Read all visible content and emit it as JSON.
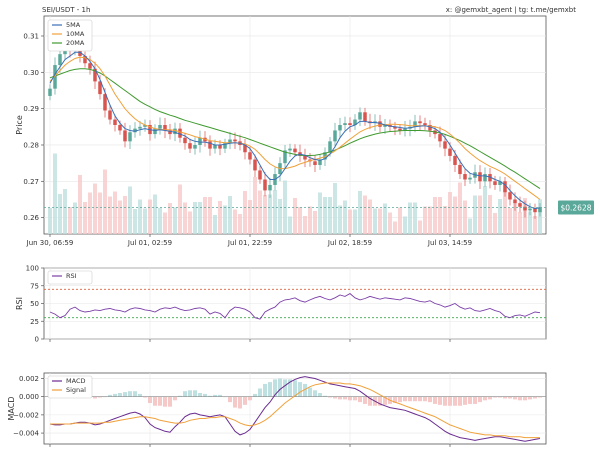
{
  "header": {
    "pair_title": "SEI/USDT - 1h",
    "credits": "x: @gemxbt_agent | tg: t.me/gemxbt"
  },
  "colors": {
    "bg": "#ffffff",
    "grid": "#e6e6e6",
    "up": "#5aa89a",
    "down": "#d9534f",
    "vol_up": "#bfe0e0",
    "vol_down": "#f6c9c9",
    "ma5": "#3b6fb6",
    "ma10": "#f0a13a",
    "ma20": "#3f9a2f",
    "rsi": "#7b3fa8",
    "rsi_70": "#e0603a",
    "rsi_30": "#3fa84a",
    "macd": "#6a2c91",
    "signal": "#f0a13a",
    "price_tag": "#5aa89a",
    "last_price_line": "#5aa89a"
  },
  "chart_data": [
    {
      "type": "candlestick",
      "id": "price",
      "ylabel": "Price",
      "ylim": [
        0.2555,
        0.3155
      ],
      "yticks": [
        0.26,
        0.27,
        0.28,
        0.29,
        0.3,
        0.31
      ],
      "ytick_labels": [
        "0.26",
        "0.27",
        "0.28",
        "0.29",
        "0.30",
        "0.31"
      ],
      "xtick_labels": [
        "Jun 30, 06:59",
        "Jul 01, 02:59",
        "Jul 01, 22:59",
        "Jul 02, 18:59",
        "Jul 03, 14:59"
      ],
      "xtick_index": [
        0,
        20,
        40,
        60,
        80
      ],
      "legend": [
        "5MA",
        "10MA",
        "20MA"
      ],
      "legend_position": "top-left",
      "last_price": 0.2628,
      "last_price_label": "$0.2628",
      "grid": true,
      "candle_count": 99,
      "close": [
        0.2955,
        0.302,
        0.305,
        0.307,
        0.306,
        0.3085,
        0.3045,
        0.3025,
        0.301,
        0.2975,
        0.294,
        0.2895,
        0.287,
        0.2855,
        0.284,
        0.281,
        0.2835,
        0.2845,
        0.285,
        0.2855,
        0.283,
        0.2845,
        0.2855,
        0.284,
        0.283,
        0.2845,
        0.282,
        0.2805,
        0.279,
        0.28,
        0.282,
        0.281,
        0.279,
        0.28,
        0.279,
        0.2805,
        0.2815,
        0.281,
        0.28,
        0.278,
        0.276,
        0.273,
        0.2705,
        0.2675,
        0.269,
        0.272,
        0.275,
        0.2785,
        0.279,
        0.278,
        0.277,
        0.276,
        0.2755,
        0.2745,
        0.276,
        0.278,
        0.281,
        0.284,
        0.2855,
        0.286,
        0.2855,
        0.287,
        0.289,
        0.2865,
        0.286,
        0.2865,
        0.285,
        0.2855,
        0.285,
        0.2845,
        0.284,
        0.2845,
        0.285,
        0.2865,
        0.286,
        0.2855,
        0.284,
        0.283,
        0.281,
        0.279,
        0.277,
        0.2745,
        0.272,
        0.2705,
        0.271,
        0.2725,
        0.27,
        0.272,
        0.27,
        0.269,
        0.27,
        0.267,
        0.265,
        0.264,
        0.263,
        0.262,
        0.2625,
        0.2615,
        0.2628
      ],
      "ma5": [
        0.297,
        0.2995,
        0.3015,
        0.3035,
        0.3045,
        0.3055,
        0.3055,
        0.3045,
        0.303,
        0.301,
        0.298,
        0.2945,
        0.291,
        0.288,
        0.286,
        0.2845,
        0.284,
        0.2838,
        0.2842,
        0.2845,
        0.2842,
        0.284,
        0.2842,
        0.284,
        0.2838,
        0.2835,
        0.283,
        0.2825,
        0.2815,
        0.281,
        0.2808,
        0.2808,
        0.2805,
        0.28,
        0.28,
        0.2802,
        0.2805,
        0.2806,
        0.2805,
        0.28,
        0.279,
        0.277,
        0.2745,
        0.272,
        0.2705,
        0.2705,
        0.2715,
        0.2735,
        0.2755,
        0.277,
        0.2775,
        0.2772,
        0.2765,
        0.276,
        0.2758,
        0.2762,
        0.2775,
        0.2795,
        0.282,
        0.2838,
        0.285,
        0.2855,
        0.2865,
        0.2865,
        0.2862,
        0.2862,
        0.286,
        0.2855,
        0.2852,
        0.285,
        0.2848,
        0.2846,
        0.2847,
        0.285,
        0.2852,
        0.2853,
        0.285,
        0.2845,
        0.2835,
        0.282,
        0.28,
        0.2778,
        0.2755,
        0.2735,
        0.2722,
        0.2718,
        0.2715,
        0.2715,
        0.2712,
        0.2705,
        0.27,
        0.269,
        0.2675,
        0.266,
        0.2648,
        0.2638,
        0.263,
        0.2625,
        0.2627
      ],
      "ma10": [
        0.2975,
        0.299,
        0.3005,
        0.302,
        0.303,
        0.3038,
        0.3042,
        0.304,
        0.3035,
        0.3025,
        0.301,
        0.299,
        0.2965,
        0.294,
        0.292,
        0.29,
        0.2885,
        0.2872,
        0.2862,
        0.2855,
        0.285,
        0.2845,
        0.2843,
        0.2842,
        0.2842,
        0.284,
        0.2836,
        0.2832,
        0.2828,
        0.2823,
        0.282,
        0.2816,
        0.2812,
        0.281,
        0.2808,
        0.2806,
        0.2806,
        0.2806,
        0.2805,
        0.2803,
        0.2797,
        0.2788,
        0.2775,
        0.276,
        0.2748,
        0.274,
        0.2735,
        0.2735,
        0.2738,
        0.2742,
        0.2748,
        0.2752,
        0.2757,
        0.276,
        0.2764,
        0.2768,
        0.2775,
        0.2784,
        0.2794,
        0.2805,
        0.2816,
        0.2826,
        0.2836,
        0.2843,
        0.2848,
        0.2852,
        0.2855,
        0.2856,
        0.2857,
        0.2857,
        0.2856,
        0.2855,
        0.2853,
        0.2853,
        0.2853,
        0.2853,
        0.2852,
        0.285,
        0.2846,
        0.284,
        0.283,
        0.2818,
        0.2805,
        0.279,
        0.2778,
        0.2767,
        0.2757,
        0.2749,
        0.2741,
        0.2735,
        0.2728,
        0.272,
        0.271,
        0.27,
        0.269,
        0.268,
        0.267,
        0.266,
        0.265
      ],
      "ma20": [
        0.2985,
        0.299,
        0.2995,
        0.3,
        0.3005,
        0.3008,
        0.301,
        0.301,
        0.3008,
        0.3004,
        0.2998,
        0.299,
        0.298,
        0.297,
        0.296,
        0.295,
        0.294,
        0.293,
        0.292,
        0.2912,
        0.2905,
        0.2898,
        0.2892,
        0.2887,
        0.2882,
        0.2878,
        0.2873,
        0.2868,
        0.2864,
        0.286,
        0.2856,
        0.2852,
        0.2848,
        0.2844,
        0.284,
        0.2836,
        0.2832,
        0.2828,
        0.2824,
        0.282,
        0.2815,
        0.281,
        0.2805,
        0.28,
        0.2795,
        0.279,
        0.2785,
        0.278,
        0.2777,
        0.2774,
        0.2772,
        0.2771,
        0.2771,
        0.2772,
        0.2774,
        0.2777,
        0.2781,
        0.2786,
        0.2792,
        0.2798,
        0.2805,
        0.2811,
        0.2817,
        0.2822,
        0.2826,
        0.283,
        0.2833,
        0.2835,
        0.2837,
        0.2838,
        0.2839,
        0.284,
        0.284,
        0.284,
        0.284,
        0.2839,
        0.2838,
        0.2836,
        0.2833,
        0.2829,
        0.2824,
        0.2818,
        0.2812,
        0.2805,
        0.2798,
        0.279,
        0.2782,
        0.2774,
        0.2766,
        0.2758,
        0.275,
        0.2742,
        0.2733,
        0.2725,
        0.2716,
        0.2707,
        0.2698,
        0.2689,
        0.268
      ]
    },
    {
      "type": "line",
      "id": "rsi",
      "ylabel": "RSI",
      "ylim": [
        0,
        100
      ],
      "yticks": [
        0,
        25,
        50,
        75,
        100
      ],
      "ytick_labels": [
        "0",
        "25",
        "50",
        "75",
        "100"
      ],
      "legend": [
        "RSI"
      ],
      "legend_position": "top-left",
      "hlines": [
        70,
        30
      ],
      "grid": true,
      "values": [
        38,
        35,
        30,
        33,
        42,
        45,
        40,
        38,
        39,
        41,
        40,
        42,
        43,
        41,
        40,
        38,
        42,
        44,
        43,
        41,
        40,
        38,
        42,
        44,
        43,
        45,
        42,
        40,
        41,
        43,
        44,
        42,
        35,
        38,
        36,
        30,
        40,
        45,
        44,
        42,
        38,
        30,
        28,
        38,
        42,
        45,
        52,
        55,
        56,
        58,
        54,
        52,
        55,
        58,
        60,
        57,
        55,
        58,
        62,
        60,
        64,
        58,
        55,
        57,
        60,
        58,
        56,
        58,
        57,
        56,
        55,
        58,
        57,
        55,
        53,
        52,
        54,
        50,
        48,
        45,
        47,
        50,
        45,
        42,
        44,
        40,
        39,
        41,
        43,
        40,
        38,
        32,
        30,
        33,
        34,
        32,
        35,
        38,
        37
      ]
    },
    {
      "type": "line",
      "id": "macd",
      "ylabel": "MACD",
      "ylim": [
        -0.0052,
        0.0026
      ],
      "yticks": [
        -0.004,
        -0.002,
        0.0,
        0.002
      ],
      "ytick_labels": [
        "−0.004",
        "−0.002",
        "0.000",
        "0.002"
      ],
      "legend": [
        "MACD",
        "Signal"
      ],
      "legend_position": "top-left",
      "grid": true,
      "macd": [
        -0.003,
        -0.0031,
        -0.0031,
        -0.003,
        -0.003,
        -0.0029,
        -0.0028,
        -0.0028,
        -0.0029,
        -0.0031,
        -0.003,
        -0.0028,
        -0.0026,
        -0.0024,
        -0.0022,
        -0.002,
        -0.0018,
        -0.0017,
        -0.0019,
        -0.0023,
        -0.003,
        -0.0034,
        -0.0036,
        -0.0038,
        -0.0039,
        -0.0033,
        -0.0028,
        -0.0022,
        -0.0019,
        -0.0018,
        -0.002,
        -0.0021,
        -0.0022,
        -0.0021,
        -0.002,
        -0.0022,
        -0.003,
        -0.0038,
        -0.0042,
        -0.004,
        -0.0036,
        -0.0028,
        -0.002,
        -0.0012,
        -0.0006,
        0.0002,
        0.0008,
        0.0012,
        0.0016,
        0.0019,
        0.0021,
        0.0022,
        0.0021,
        0.002,
        0.0018,
        0.0016,
        0.0014,
        0.0013,
        0.0012,
        0.0011,
        0.001,
        0.0009,
        0.0006,
        0.0002,
        -0.0002,
        -0.0005,
        -0.0008,
        -0.001,
        -0.0012,
        -0.0013,
        -0.0014,
        -0.0015,
        -0.0017,
        -0.0019,
        -0.0021,
        -0.0023,
        -0.0026,
        -0.003,
        -0.0034,
        -0.0038,
        -0.0041,
        -0.0043,
        -0.0045,
        -0.0046,
        -0.0047,
        -0.0048,
        -0.0047,
        -0.0046,
        -0.0045,
        -0.0044,
        -0.0044,
        -0.0045,
        -0.0046,
        -0.0047,
        -0.0048,
        -0.0049,
        -0.0048,
        -0.0047,
        -0.0046
      ],
      "signal": [
        -0.003,
        -0.003,
        -0.003,
        -0.003,
        -0.003,
        -0.0029,
        -0.0029,
        -0.0029,
        -0.0029,
        -0.0029,
        -0.0029,
        -0.0028,
        -0.0028,
        -0.0027,
        -0.0026,
        -0.0025,
        -0.0024,
        -0.0023,
        -0.0022,
        -0.0022,
        -0.0023,
        -0.0024,
        -0.0026,
        -0.0027,
        -0.0028,
        -0.0029,
        -0.0029,
        -0.0028,
        -0.0026,
        -0.0025,
        -0.0024,
        -0.0024,
        -0.0023,
        -0.0023,
        -0.0022,
        -0.0022,
        -0.0024,
        -0.0026,
        -0.0029,
        -0.0031,
        -0.0032,
        -0.0031,
        -0.0029,
        -0.0026,
        -0.0022,
        -0.0017,
        -0.0012,
        -0.0007,
        -0.0003,
        0.0001,
        0.0005,
        0.0008,
        0.0011,
        0.0013,
        0.0014,
        0.0015,
        0.0015,
        0.0015,
        0.0015,
        0.0014,
        0.0014,
        0.0013,
        0.0012,
        0.001,
        0.0008,
        0.0005,
        0.0002,
        -0.0001,
        -0.0004,
        -0.0006,
        -0.0008,
        -0.001,
        -0.0012,
        -0.0014,
        -0.0016,
        -0.0018,
        -0.002,
        -0.0022,
        -0.0025,
        -0.0028,
        -0.0031,
        -0.0033,
        -0.0035,
        -0.0037,
        -0.0039,
        -0.004,
        -0.0041,
        -0.0042,
        -0.0042,
        -0.0043,
        -0.0043,
        -0.0043,
        -0.0044,
        -0.0044,
        -0.0044,
        -0.0045,
        -0.0045,
        -0.0045,
        -0.0045
      ]
    }
  ]
}
